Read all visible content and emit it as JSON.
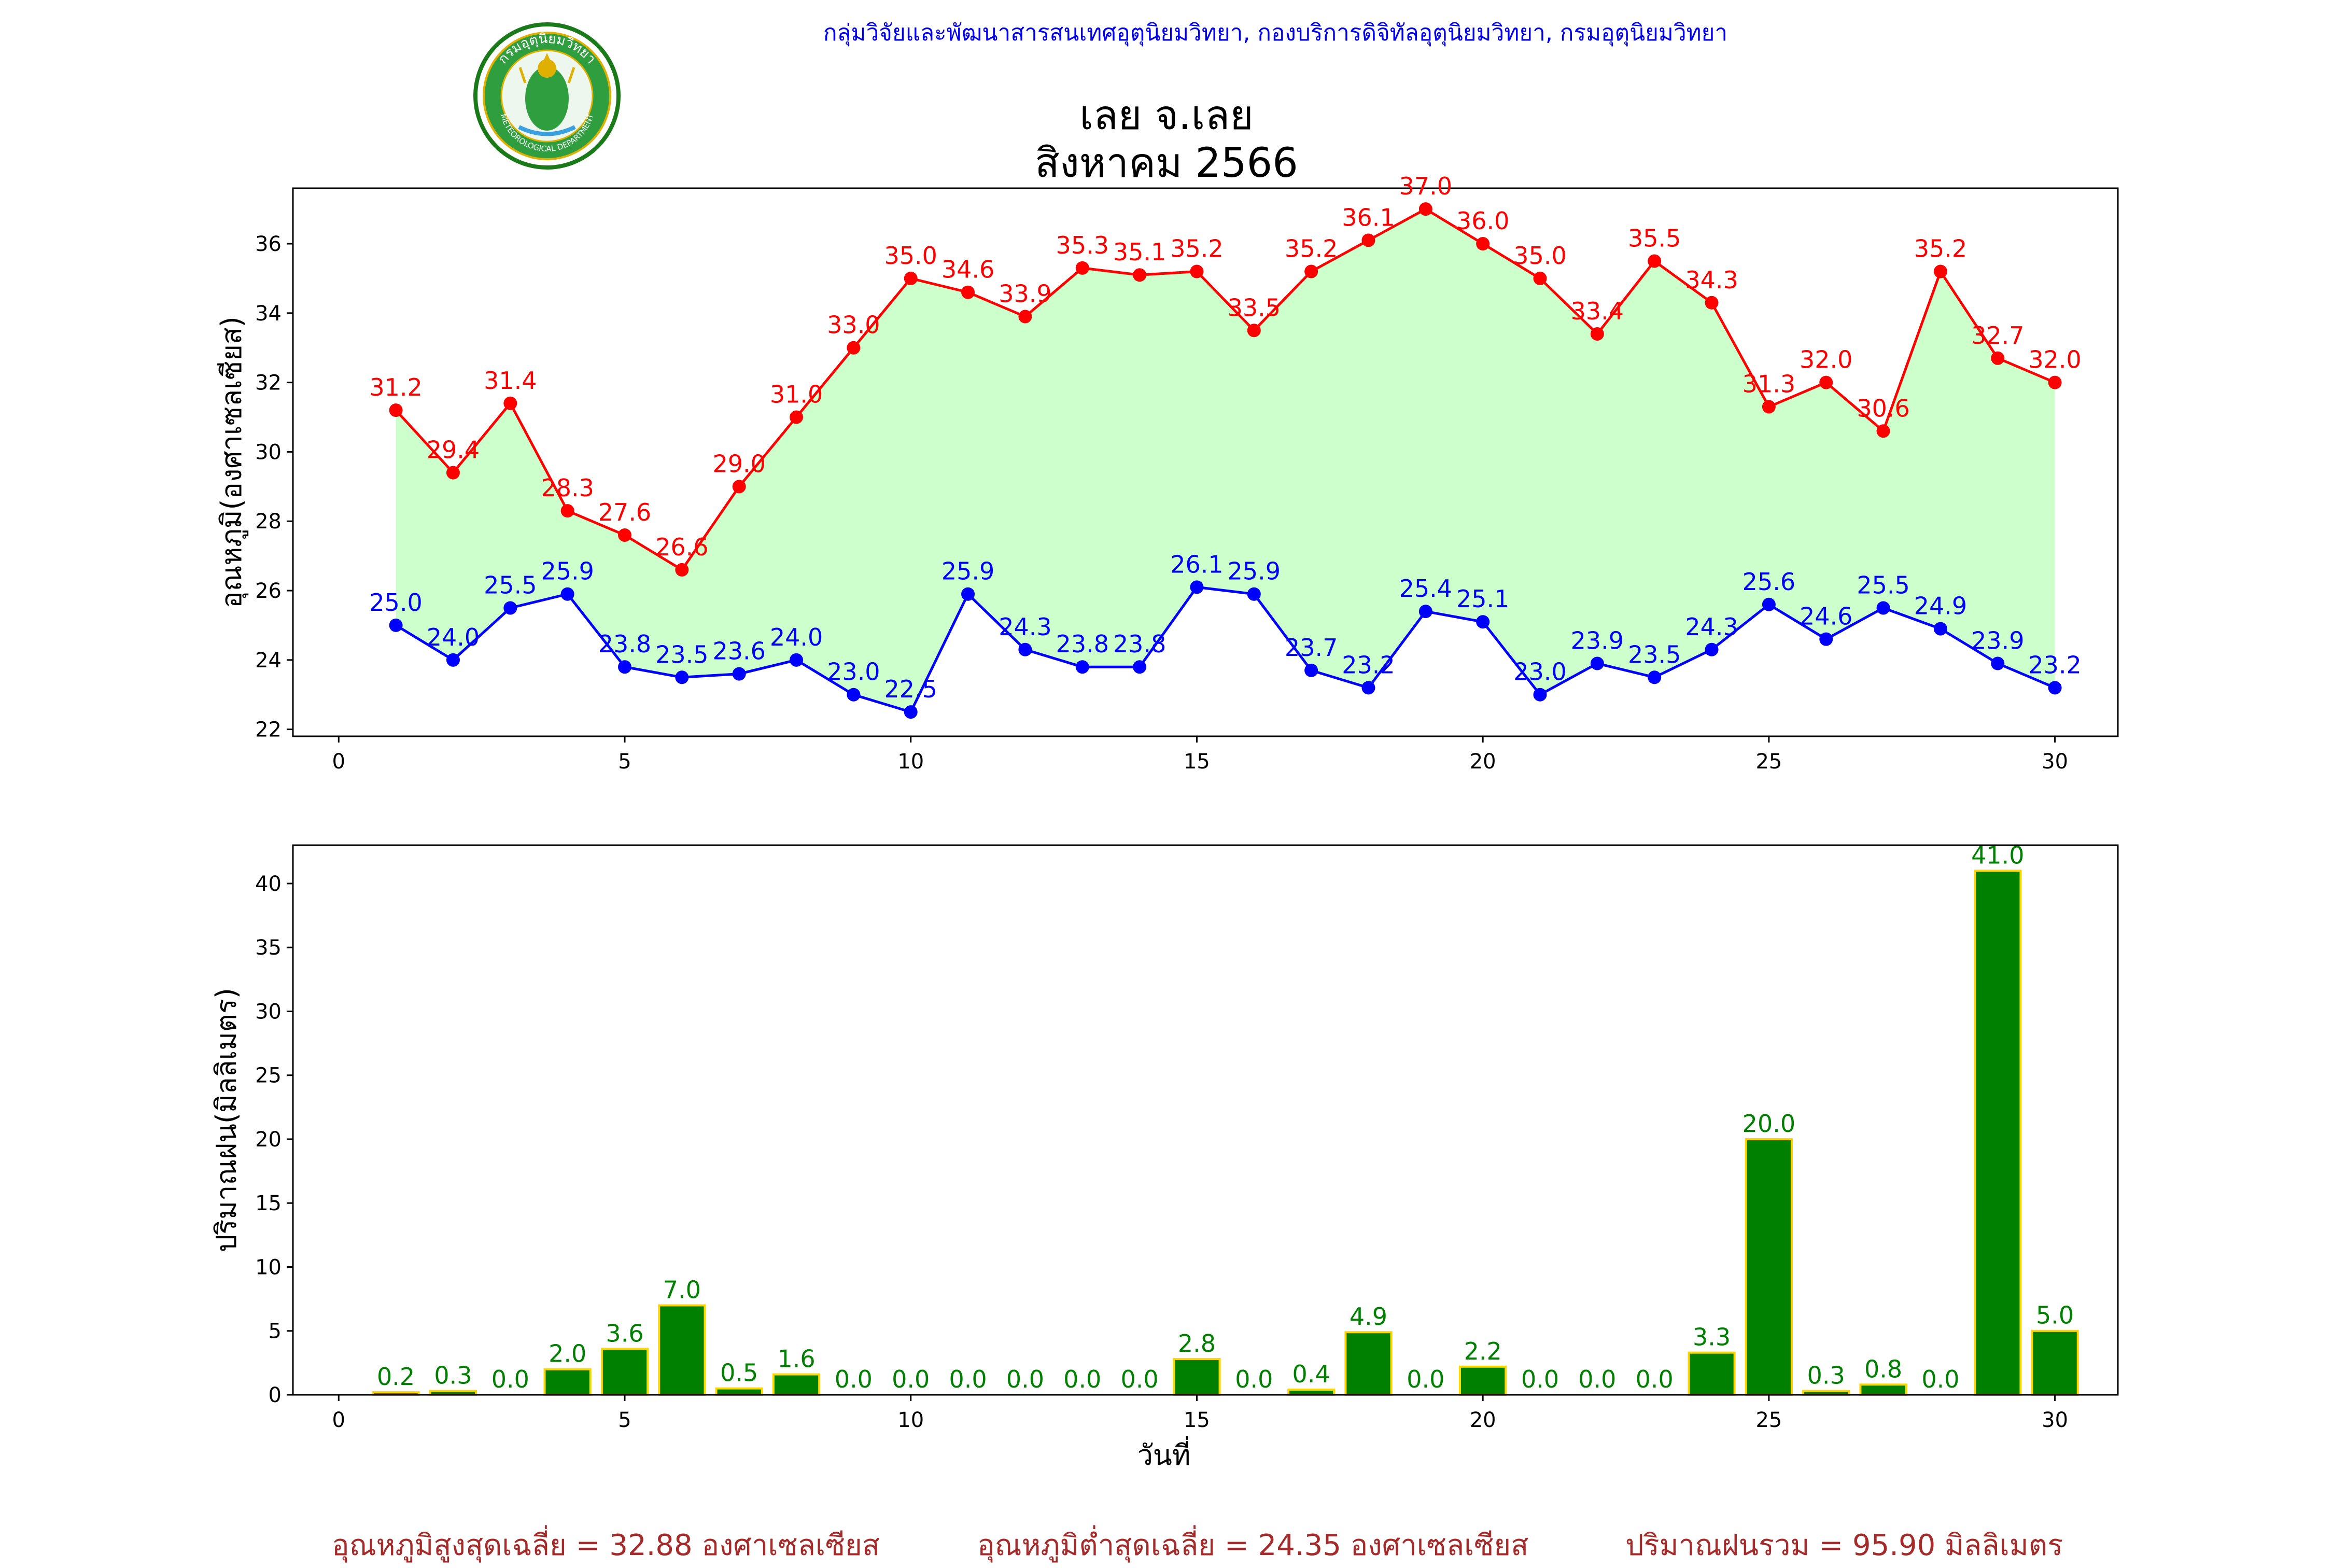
{
  "header": {
    "org_text": "กลุ่มวิจัยและพัฒนาสารสนเทศอุตุนิยมวิทยา, กองบริการดิจิทัลอุตุนิยมวิทยา, กรมอุตุนิยมวิทยา",
    "logo_icon": "meteorological-department-seal-icon",
    "logo_text_top": "กรมอุตุนิยมวิทยา",
    "logo_text_bottom": "METEOROLOGICAL DEPARTMENT"
  },
  "title": {
    "line1": "เลย จ.เลย",
    "line2": "สิงหาคม 2566"
  },
  "colors": {
    "max_temp": "#ff0000",
    "min_temp": "#0000ff",
    "fill": "#ccffcc",
    "rain_bar": "#008000",
    "rain_bar_edge": "#ffd700",
    "rain_label": "#008000",
    "summary": "#a52a2a",
    "header": "#0000ee"
  },
  "chart_data": [
    {
      "type": "line",
      "ylabel": "อุณหภูมิ(องศาเซลเซียส)",
      "xlabel": "",
      "xlim": [
        -0.8,
        31.1
      ],
      "ylim": [
        21.8,
        37.6
      ],
      "xticks": [
        0,
        5,
        10,
        15,
        20,
        25,
        30
      ],
      "yticks": [
        22,
        24,
        26,
        28,
        30,
        32,
        34,
        36
      ],
      "grid": false,
      "x": [
        1,
        2,
        3,
        4,
        5,
        6,
        7,
        8,
        9,
        10,
        11,
        12,
        13,
        14,
        15,
        16,
        17,
        18,
        19,
        20,
        21,
        22,
        23,
        24,
        25,
        26,
        27,
        28,
        29,
        30
      ],
      "series": [
        {
          "key": "max",
          "values": [
            31.2,
            29.4,
            31.4,
            28.3,
            27.6,
            26.6,
            29.0,
            31.0,
            33.0,
            35.0,
            34.6,
            33.9,
            35.3,
            35.1,
            35.2,
            33.5,
            35.2,
            36.1,
            37.0,
            36.0,
            35.0,
            33.4,
            35.5,
            34.3,
            31.3,
            32.0,
            30.6,
            35.2,
            32.7,
            32.0
          ],
          "labels": [
            "31.2",
            "29.4",
            "31.4",
            "28.3",
            "27.6",
            "26.6",
            "29.0",
            "31.0",
            "33.0",
            "35.0",
            "34.6",
            "33.9",
            "35.3",
            "35.1",
            "35.2",
            "33.5",
            "35.2",
            "36.1",
            "37.0",
            "36.0",
            "35.0",
            "33.4",
            "35.5",
            "34.3",
            "31.3",
            "32.0",
            "30.6",
            "35.2",
            "32.7",
            "32.0"
          ]
        },
        {
          "key": "min",
          "values": [
            25.0,
            24.0,
            25.5,
            25.9,
            23.8,
            23.5,
            23.6,
            24.0,
            23.0,
            22.5,
            25.9,
            24.3,
            23.8,
            23.8,
            26.1,
            25.9,
            23.7,
            23.2,
            25.4,
            25.1,
            23.0,
            23.9,
            23.5,
            24.3,
            25.6,
            24.6,
            25.5,
            24.9,
            23.9,
            23.2
          ],
          "labels": [
            "25.0",
            "24.0",
            "25.5",
            "25.9",
            "23.8",
            "23.5",
            "23.6",
            "24.0",
            "23.0",
            "22.5",
            "25.9",
            "24.3",
            "23.8",
            "23.8",
            "26.1",
            "25.9",
            "23.7",
            "23.2",
            "25.4",
            "25.1",
            "23.0",
            "23.9",
            "23.5",
            "24.3",
            "25.6",
            "24.6",
            "25.5",
            "24.9",
            "23.9",
            "23.2"
          ]
        }
      ]
    },
    {
      "type": "bar",
      "ylabel": "ปริมาณฝน(มิลลิเมตร)",
      "xlabel": "วันที่",
      "xlim": [
        -0.8,
        31.1
      ],
      "ylim": [
        0,
        43
      ],
      "xticks": [
        0,
        5,
        10,
        15,
        20,
        25,
        30
      ],
      "yticks": [
        0,
        5,
        10,
        15,
        20,
        25,
        30,
        35,
        40
      ],
      "grid": false,
      "x": [
        1,
        2,
        3,
        4,
        5,
        6,
        7,
        8,
        9,
        10,
        11,
        12,
        13,
        14,
        15,
        16,
        17,
        18,
        19,
        20,
        21,
        22,
        23,
        24,
        25,
        26,
        27,
        28,
        29,
        30
      ],
      "values": [
        0.2,
        0.3,
        0.0,
        2.0,
        3.6,
        7.0,
        0.5,
        1.6,
        0.0,
        0.0,
        0.0,
        0.0,
        0.0,
        0.0,
        2.8,
        0.0,
        0.4,
        4.9,
        0.0,
        2.2,
        0.0,
        0.0,
        0.0,
        3.3,
        20.0,
        0.3,
        0.8,
        0.0,
        41.0,
        5.0
      ],
      "labels": [
        "0.2",
        "0.3",
        "0.0",
        "2.0",
        "3.6",
        "7.0",
        "0.5",
        "1.6",
        "0.0",
        "0.0",
        "0.0",
        "0.0",
        "0.0",
        "0.0",
        "2.8",
        "0.0",
        "0.4",
        "4.9",
        "0.0",
        "2.2",
        "0.0",
        "0.0",
        "0.0",
        "3.3",
        "20.0",
        "0.3",
        "0.8",
        "0.0",
        "41.0",
        "5.0"
      ]
    }
  ],
  "summary": {
    "avg_max": "อุณหภูมิสูงสุดเฉลี่ย = 32.88 องศาเซลเซียส",
    "avg_min": "อุณหภูมิต่ำสุดเฉลี่ย = 24.35 องศาเซลเซียส",
    "total_rain": "ปริมาณฝนรวม = 95.90 มิลลิเมตร"
  }
}
